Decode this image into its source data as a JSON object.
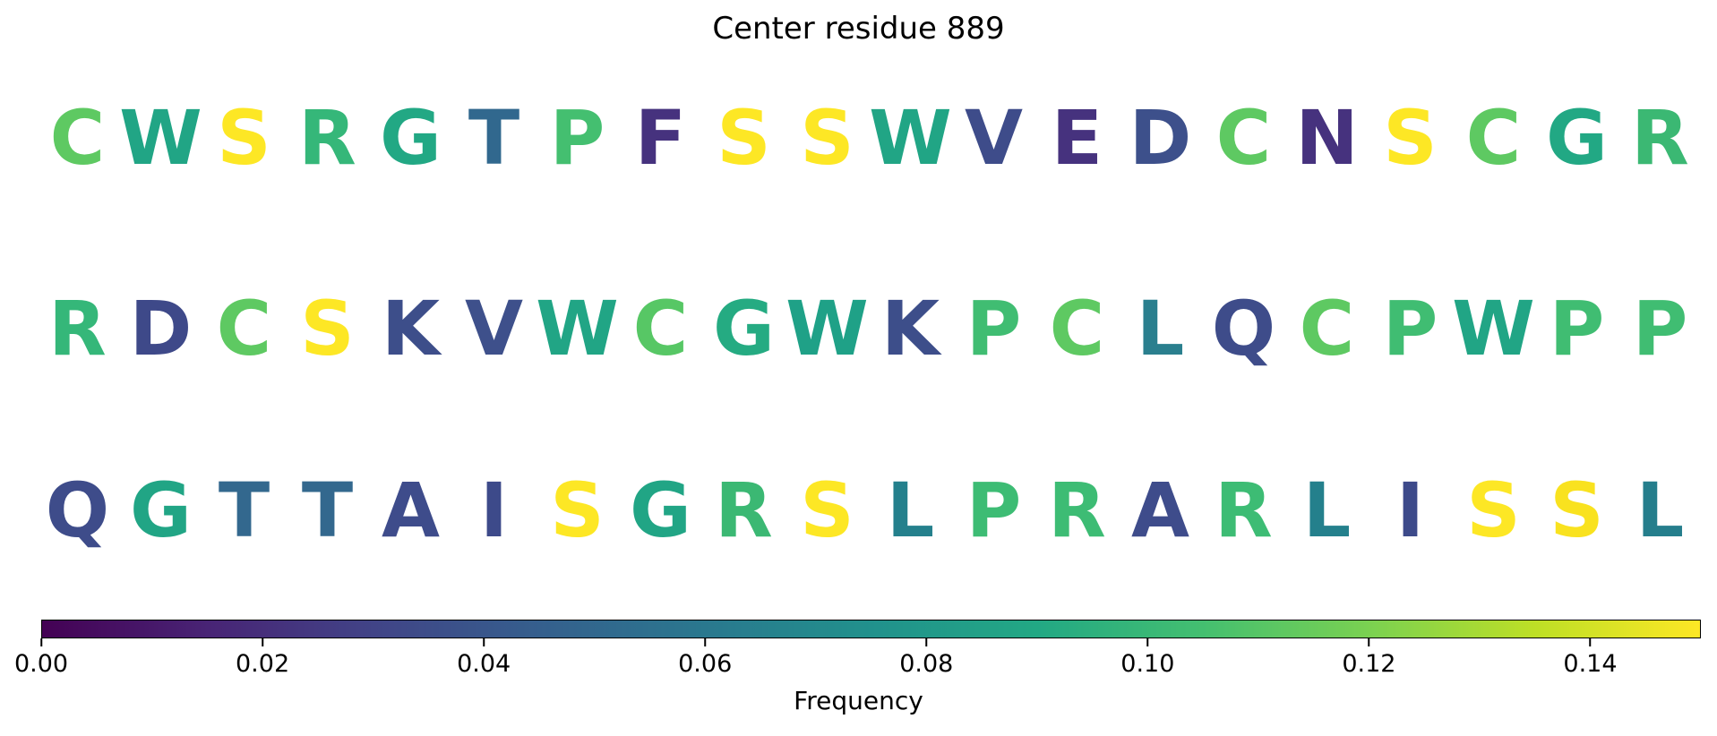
{
  "title": "Center residue 889",
  "colorbar": {
    "label": "Frequency",
    "vmin": 0.0,
    "vmax": 0.15,
    "tick_labels": [
      "0.00",
      "0.02",
      "0.04",
      "0.06",
      "0.08",
      "0.10",
      "0.12",
      "0.14"
    ],
    "tick_values": [
      0.0,
      0.02,
      0.04,
      0.06,
      0.08,
      0.1,
      0.12,
      0.14
    ],
    "colormap": "viridis",
    "colormap_stops": [
      "#440154",
      "#482475",
      "#414487",
      "#355f8d",
      "#2a788e",
      "#21918c",
      "#22a884",
      "#44bf70",
      "#7ad151",
      "#bddf26",
      "#fde725"
    ]
  },
  "chart_data": {
    "type": "heatmap",
    "title": "Center residue 889",
    "colorbar_label": "Frequency",
    "color_range": [
      0.0,
      0.15
    ],
    "legend_position": "bottom",
    "rows": [
      {
        "residues": [
          {
            "letter": "C",
            "freq": 0.112,
            "color": "#5ec962"
          },
          {
            "letter": "W",
            "freq": 0.089,
            "color": "#21a585"
          },
          {
            "letter": "S",
            "freq": 0.148,
            "color": "#fde725"
          },
          {
            "letter": "R",
            "freq": 0.097,
            "color": "#35b779"
          },
          {
            "letter": "G",
            "freq": 0.09,
            "color": "#22a884"
          },
          {
            "letter": "T",
            "freq": 0.049,
            "color": "#31688e"
          },
          {
            "letter": "P",
            "freq": 0.101,
            "color": "#44bf70"
          },
          {
            "letter": "F",
            "freq": 0.016,
            "color": "#46327e"
          },
          {
            "letter": "S",
            "freq": 0.148,
            "color": "#fde725"
          },
          {
            "letter": "S",
            "freq": 0.148,
            "color": "#fde725"
          },
          {
            "letter": "W",
            "freq": 0.089,
            "color": "#21a585"
          },
          {
            "letter": "V",
            "freq": 0.032,
            "color": "#3e4c8a"
          },
          {
            "letter": "E",
            "freq": 0.016,
            "color": "#46327e"
          },
          {
            "letter": "D",
            "freq": 0.034,
            "color": "#3d508b"
          },
          {
            "letter": "C",
            "freq": 0.112,
            "color": "#5ec962"
          },
          {
            "letter": "N",
            "freq": 0.016,
            "color": "#46327e"
          },
          {
            "letter": "S",
            "freq": 0.148,
            "color": "#fde725"
          },
          {
            "letter": "C",
            "freq": 0.112,
            "color": "#5ec962"
          },
          {
            "letter": "G",
            "freq": 0.09,
            "color": "#22a884"
          },
          {
            "letter": "R",
            "freq": 0.098,
            "color": "#3bb873"
          }
        ]
      },
      {
        "residues": [
          {
            "letter": "R",
            "freq": 0.097,
            "color": "#35b779"
          },
          {
            "letter": "D",
            "freq": 0.031,
            "color": "#3e4989"
          },
          {
            "letter": "C",
            "freq": 0.112,
            "color": "#5ec962"
          },
          {
            "letter": "S",
            "freq": 0.148,
            "color": "#fde725"
          },
          {
            "letter": "K",
            "freq": 0.032,
            "color": "#3d4e8a"
          },
          {
            "letter": "V",
            "freq": 0.033,
            "color": "#3e508b"
          },
          {
            "letter": "W",
            "freq": 0.089,
            "color": "#21a585"
          },
          {
            "letter": "C",
            "freq": 0.11,
            "color": "#57c765"
          },
          {
            "letter": "G",
            "freq": 0.091,
            "color": "#25ab82"
          },
          {
            "letter": "W",
            "freq": 0.087,
            "color": "#1fa187"
          },
          {
            "letter": "K",
            "freq": 0.032,
            "color": "#3d4e8a"
          },
          {
            "letter": "P",
            "freq": 0.101,
            "color": "#40bd72"
          },
          {
            "letter": "C",
            "freq": 0.112,
            "color": "#5ec962"
          },
          {
            "letter": "L",
            "freq": 0.059,
            "color": "#2a7f8e"
          },
          {
            "letter": "Q",
            "freq": 0.032,
            "color": "#3e4c8a"
          },
          {
            "letter": "C",
            "freq": 0.112,
            "color": "#5ec962"
          },
          {
            "letter": "P",
            "freq": 0.101,
            "color": "#40bd72"
          },
          {
            "letter": "W",
            "freq": 0.089,
            "color": "#21a585"
          },
          {
            "letter": "P",
            "freq": 0.101,
            "color": "#40bd72"
          },
          {
            "letter": "P",
            "freq": 0.101,
            "color": "#40bd72"
          }
        ]
      },
      {
        "residues": [
          {
            "letter": "Q",
            "freq": 0.032,
            "color": "#3e4c8a"
          },
          {
            "letter": "G",
            "freq": 0.089,
            "color": "#21a585"
          },
          {
            "letter": "T",
            "freq": 0.049,
            "color": "#33688e"
          },
          {
            "letter": "T",
            "freq": 0.049,
            "color": "#33688e"
          },
          {
            "letter": "A",
            "freq": 0.032,
            "color": "#3e4c8b"
          },
          {
            "letter": "I",
            "freq": 0.031,
            "color": "#3d4a8a"
          },
          {
            "letter": "S",
            "freq": 0.148,
            "color": "#fde725"
          },
          {
            "letter": "G",
            "freq": 0.089,
            "color": "#21a585"
          },
          {
            "letter": "R",
            "freq": 0.098,
            "color": "#3bb873"
          },
          {
            "letter": "S",
            "freq": 0.148,
            "color": "#fde725"
          },
          {
            "letter": "L",
            "freq": 0.063,
            "color": "#24808c"
          },
          {
            "letter": "P",
            "freq": 0.101,
            "color": "#3dbc74"
          },
          {
            "letter": "R",
            "freq": 0.101,
            "color": "#3dbc74"
          },
          {
            "letter": "A",
            "freq": 0.032,
            "color": "#3e4c8b"
          },
          {
            "letter": "R",
            "freq": 0.101,
            "color": "#3dbc74"
          },
          {
            "letter": "L",
            "freq": 0.063,
            "color": "#24808c"
          },
          {
            "letter": "I",
            "freq": 0.031,
            "color": "#3d4a8a"
          },
          {
            "letter": "S",
            "freq": 0.148,
            "color": "#fde725"
          },
          {
            "letter": "S",
            "freq": 0.147,
            "color": "#f9e21f"
          },
          {
            "letter": "L",
            "freq": 0.062,
            "color": "#257e8c"
          }
        ]
      }
    ]
  }
}
